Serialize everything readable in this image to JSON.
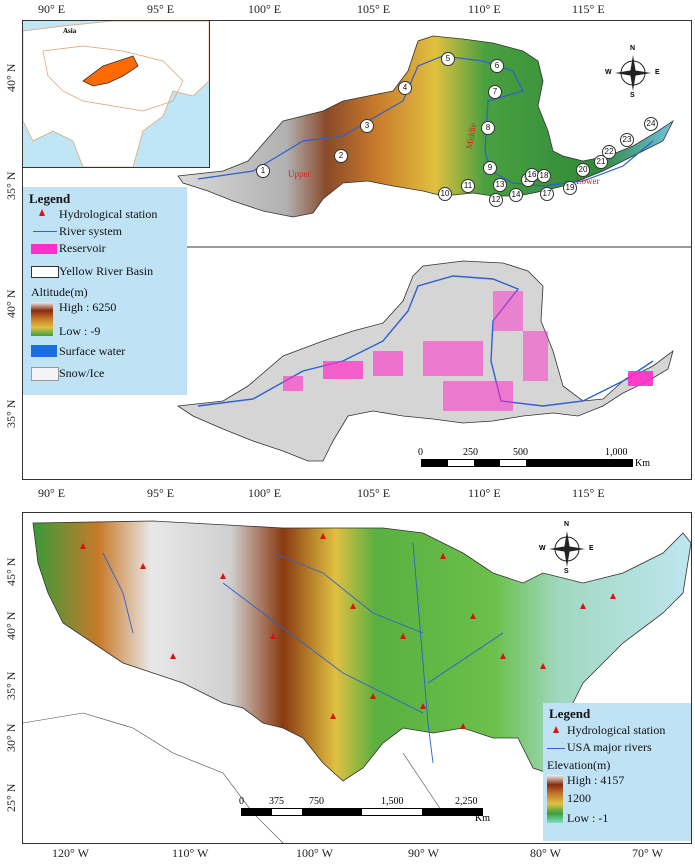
{
  "top_map": {
    "lon_labels": [
      "90° E",
      "95° E",
      "100° E",
      "105° E",
      "110° E",
      "115° E"
    ],
    "lat_labels_upper": [
      "40° N",
      "35° N"
    ],
    "lat_labels_lower": [
      "40° N",
      "35° N"
    ],
    "inset_label": "Asia",
    "region_labels": {
      "upper": "Upper",
      "middle": "Middle",
      "lower": "Lower"
    },
    "stations": [
      "1",
      "2",
      "3",
      "4",
      "5",
      "6",
      "7",
      "8",
      "9",
      "10",
      "11",
      "12",
      "13",
      "14",
      "15",
      "16",
      "17",
      "18",
      "19",
      "20",
      "21",
      "22",
      "23",
      "24"
    ],
    "legend": {
      "title": "Legend",
      "items": [
        "Hydrological station",
        "River system",
        "Reservoir",
        "Yellow River Basin"
      ],
      "altitude_title": "Altitude(m)",
      "high": "High : 6250",
      "low": "Low : -9",
      "surface_water": "Surface water",
      "snow_ice": "Snow/Ice"
    },
    "scale": {
      "ticks": [
        "0",
        "250",
        "500",
        "1,000"
      ],
      "unit": "Km"
    },
    "compass": {
      "n": "N",
      "s": "S",
      "e": "E",
      "w": "W"
    }
  },
  "bottom_map": {
    "lon_labels": [
      "120° W",
      "110° W",
      "100° W",
      "90° W",
      "80° W",
      "70° W"
    ],
    "lat_labels": [
      "45° N",
      "40° N",
      "35° N",
      "30° N",
      "25° N"
    ],
    "legend": {
      "title": "Legend",
      "items": [
        "Hydrological station",
        "USA major rivers"
      ],
      "elevation_title": "Elevation(m)",
      "high": "High : 4157",
      "mid": "1200",
      "low": "Low : -1"
    },
    "scale": {
      "ticks": [
        "0",
        "375",
        "750",
        "1,500",
        "2,250"
      ],
      "unit": "Km"
    },
    "compass": {
      "n": "N",
      "s": "S",
      "e": "E",
      "w": "W"
    }
  },
  "colors": {
    "legend_bg": "#bfe2f5",
    "station": "#e01010",
    "river": "#3a5fcd",
    "reservoir": "#ff2ec8",
    "surface_water": "#1a6fe0"
  }
}
